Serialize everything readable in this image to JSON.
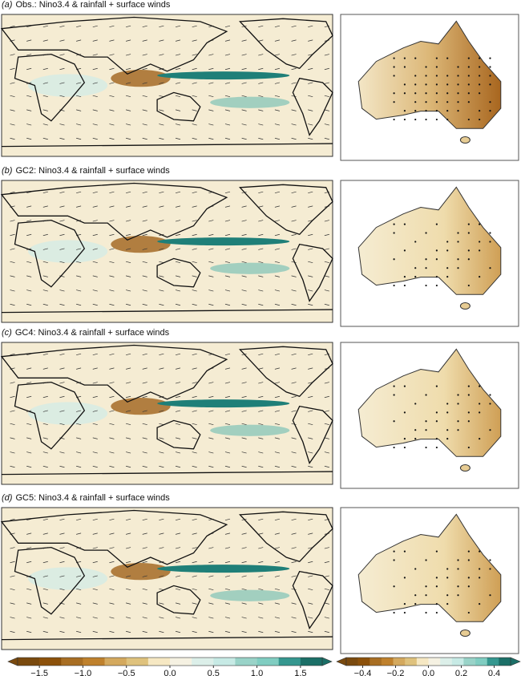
{
  "panels": [
    {
      "label": "(a)",
      "title": "Obs.: Nino3.4 & rainfall + surface winds"
    },
    {
      "label": "(b)",
      "title": "GC2: Nino3.4 & rainfall + surface winds"
    },
    {
      "label": "(c)",
      "title": "GC4: Nino3.4 & rainfall + surface winds"
    },
    {
      "label": "(d)",
      "title": "GC5: Nino3.4 & rainfall + surface winds"
    }
  ],
  "colorbars": [
    {
      "lim": [
        -1.75,
        1.75
      ],
      "ticks": [
        {
          "value": -1.5,
          "label": "−1.5"
        },
        {
          "value": -1.0,
          "label": "−1.0"
        },
        {
          "value": -0.5,
          "label": "−0.5"
        },
        {
          "value": 0.0,
          "label": "0.0"
        },
        {
          "value": 0.5,
          "label": "0.5"
        },
        {
          "value": 1.0,
          "label": "1.0"
        },
        {
          "value": 1.5,
          "label": "1.5"
        }
      ]
    },
    {
      "lim": [
        -0.5,
        0.5
      ],
      "ticks": [
        {
          "value": -0.4,
          "label": "−0.4"
        },
        {
          "value": -0.2,
          "label": "−0.2"
        },
        {
          "value": 0.0,
          "label": "0.0"
        },
        {
          "value": 0.2,
          "label": "0.2"
        },
        {
          "value": 0.4,
          "label": "0.4"
        }
      ]
    }
  ]
}
